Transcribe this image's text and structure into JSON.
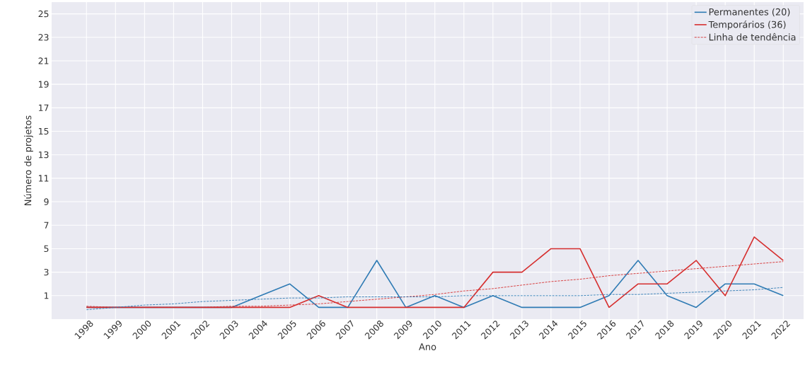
{
  "chart_data": {
    "type": "line",
    "xlabel": "Ano",
    "ylabel": "Número de projetos",
    "categories": [
      "1998",
      "1999",
      "2000",
      "2001",
      "2002",
      "2003",
      "2004",
      "2005",
      "2006",
      "2007",
      "2008",
      "2009",
      "2010",
      "2011",
      "2012",
      "2013",
      "2014",
      "2015",
      "2016",
      "2017",
      "2018",
      "2019",
      "2020",
      "2021",
      "2022"
    ],
    "series": [
      {
        "name": "Permanentes (20)",
        "color": "#2f7bb4",
        "line_style": "solid",
        "values": [
          0,
          0,
          0,
          0,
          0,
          0,
          1,
          2,
          0,
          0,
          4,
          0,
          1,
          0,
          1,
          0,
          0,
          0,
          1,
          4,
          1,
          0,
          2,
          2,
          1
        ]
      },
      {
        "name": "Temporários (36)",
        "color": "#d62f2f",
        "line_style": "solid",
        "values": [
          0,
          0,
          0,
          0,
          0,
          0,
          0,
          0,
          1,
          0,
          0,
          0,
          0,
          0,
          3,
          3,
          5,
          5,
          0,
          2,
          2,
          4,
          1,
          6,
          4
        ]
      },
      {
        "name": "Linha de tendência",
        "color": "#d62f2f",
        "line_style": "dashed",
        "values": [
          0.1,
          0,
          0,
          0,
          0,
          0.1,
          0.1,
          0.2,
          0.3,
          0.5,
          0.7,
          0.9,
          1.1,
          1.4,
          1.6,
          1.9,
          2.2,
          2.4,
          2.7,
          2.9,
          3.1,
          3.3,
          3.5,
          3.7,
          3.9
        ]
      },
      {
        "color": "#2f7bb4",
        "line_style": "dashed",
        "values": [
          -0.2,
          0,
          0.2,
          0.3,
          0.5,
          0.6,
          0.7,
          0.8,
          0.8,
          0.9,
          0.9,
          0.9,
          0.9,
          1,
          1,
          1,
          1,
          1,
          1.1,
          1.1,
          1.2,
          1.3,
          1.4,
          1.5,
          1.7
        ]
      }
    ],
    "ylim": [
      -1,
      26
    ],
    "yticks": [
      1,
      3,
      5,
      7,
      9,
      11,
      13,
      15,
      17,
      19,
      21,
      23,
      25
    ],
    "grid": true,
    "legend": "top right"
  }
}
